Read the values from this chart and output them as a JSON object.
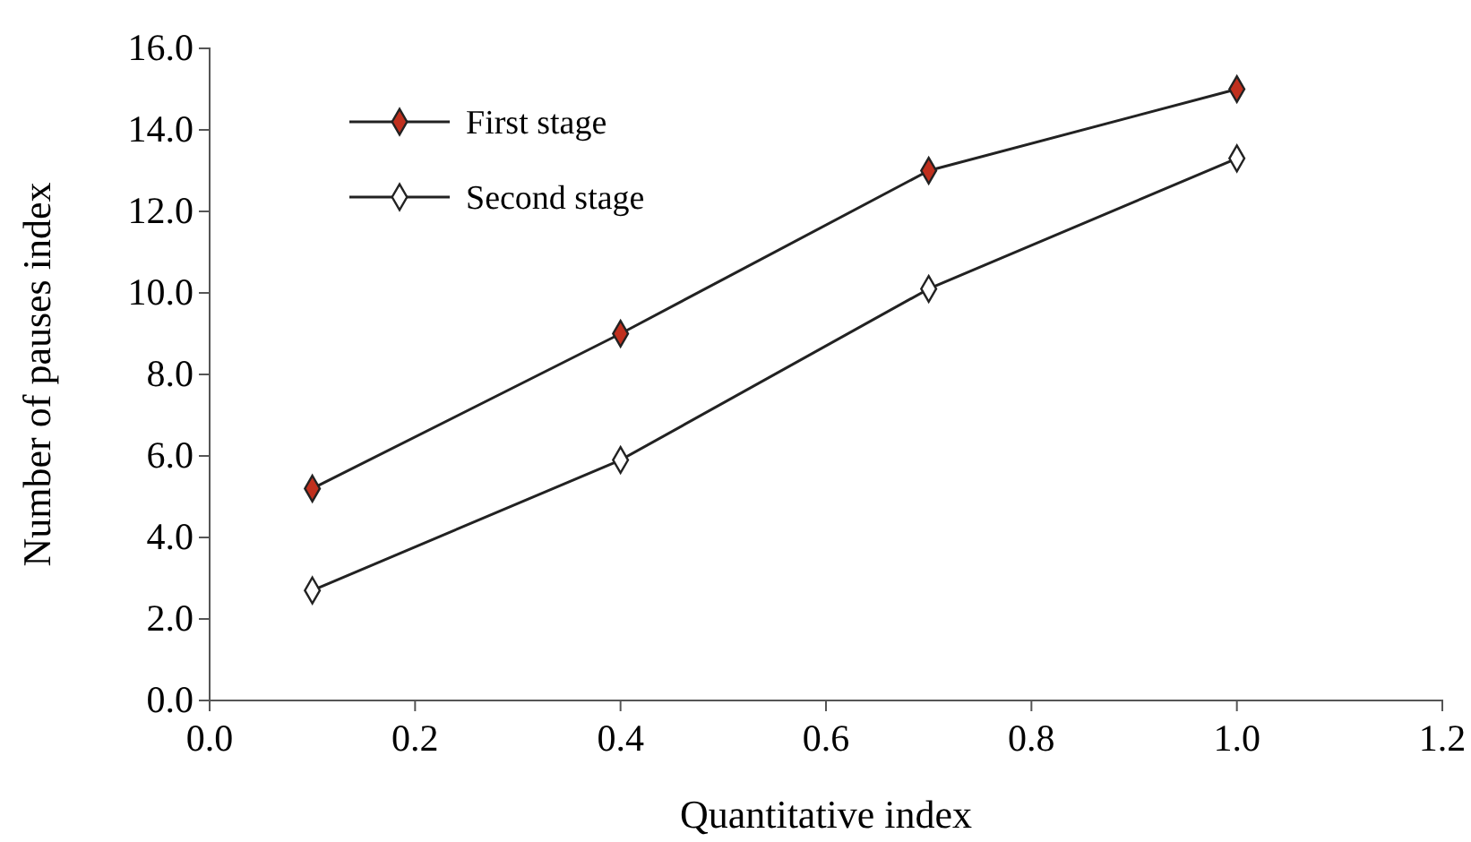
{
  "chart_data": {
    "type": "line",
    "xlabel": "Quantitative index",
    "ylabel": "Number of pauses index",
    "x": [
      0.1,
      0.4,
      0.7,
      1.0
    ],
    "series": [
      {
        "name": "First stage",
        "color": "#c0301e",
        "values": [
          5.2,
          9.0,
          13.0,
          15.0
        ]
      },
      {
        "name": "Second stage",
        "color": "#ffffff",
        "values": [
          2.7,
          5.9,
          10.1,
          13.3
        ]
      }
    ],
    "xlim": [
      0,
      1.2
    ],
    "xticks": [
      {
        "value": 0,
        "label": "0.0"
      },
      {
        "value": 0.2,
        "label": "0.2"
      },
      {
        "value": 0.4,
        "label": "0.4"
      },
      {
        "value": 0.6,
        "label": "0.6"
      },
      {
        "value": 0.8,
        "label": "0.8"
      },
      {
        "value": 1.0,
        "label": "1.0"
      },
      {
        "value": 1.2,
        "label": "1.2"
      }
    ],
    "ylim": [
      0,
      16
    ],
    "yticks": [
      {
        "value": 0,
        "label": "0.0"
      },
      {
        "value": 2,
        "label": "2.0"
      },
      {
        "value": 4,
        "label": "4.0"
      },
      {
        "value": 6,
        "label": "6.0"
      },
      {
        "value": 8,
        "label": "8.0"
      },
      {
        "value": 10,
        "label": "10.0"
      },
      {
        "value": 12,
        "label": "12.0"
      },
      {
        "value": 14,
        "label": "14.0"
      },
      {
        "value": 16,
        "label": "16.0"
      }
    ],
    "marker": "diamond",
    "line_style": "solid",
    "legend": "top left",
    "grid": false
  }
}
